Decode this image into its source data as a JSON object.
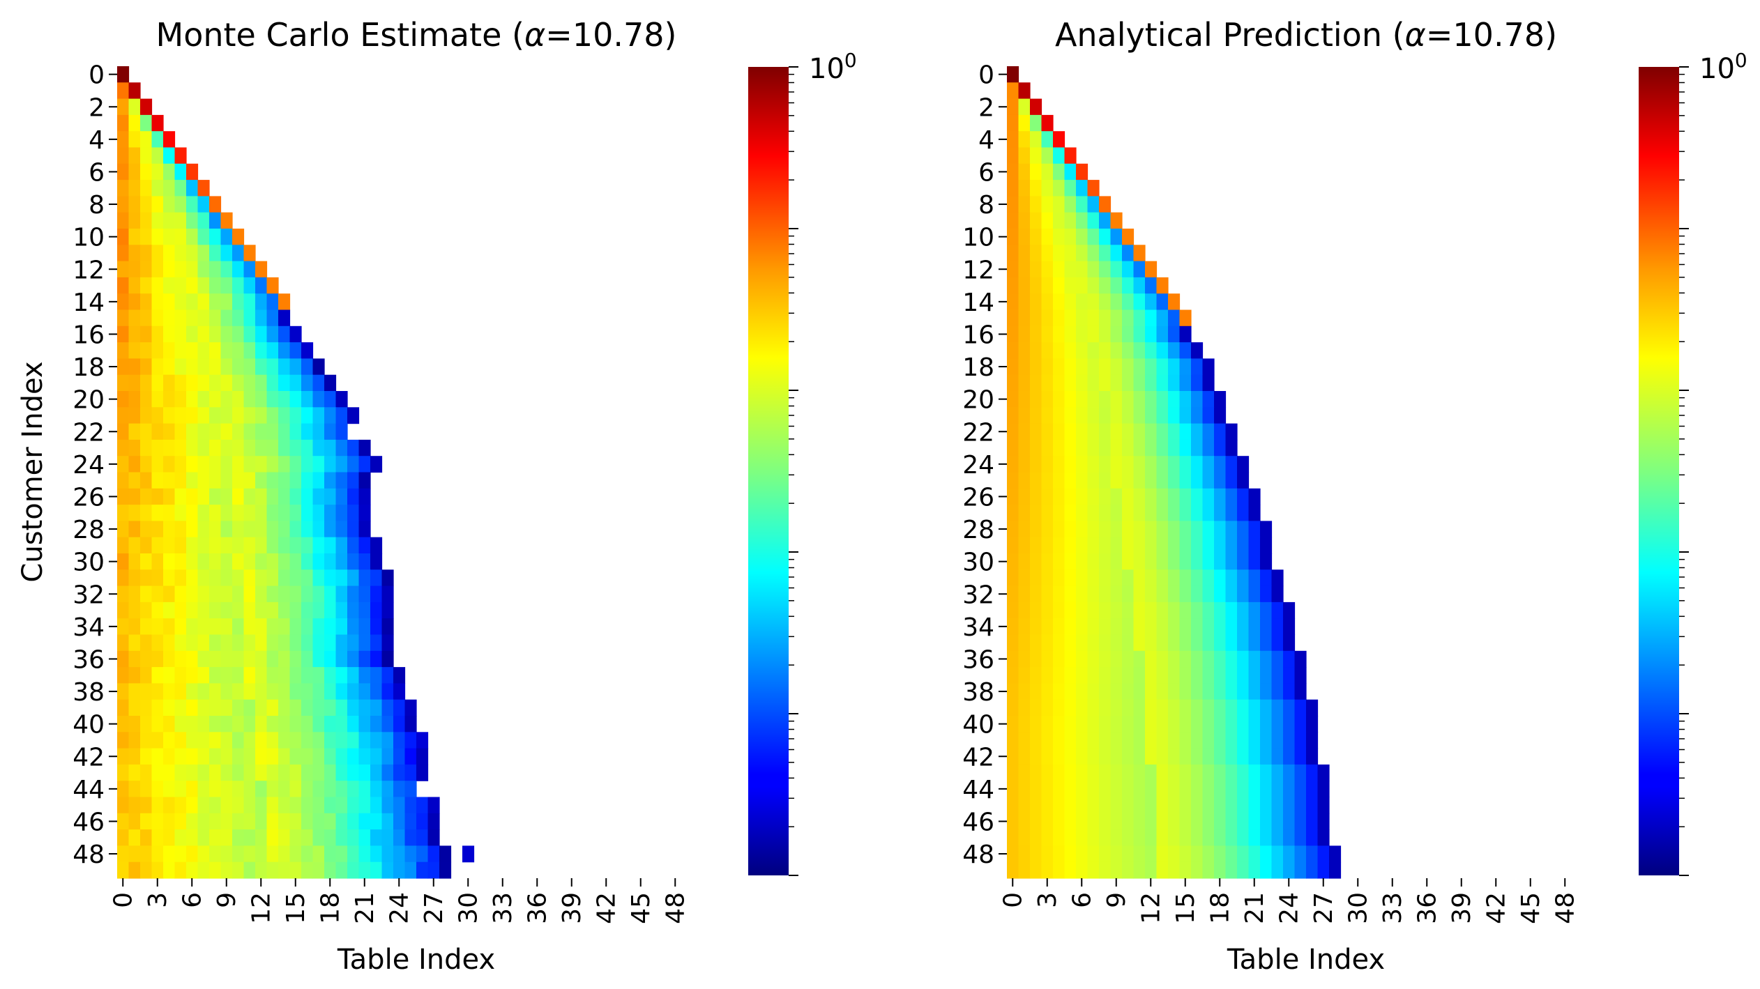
{
  "chart_data": [
    {
      "type": "heatmap",
      "title": "Monte Carlo Estimate (α=10.78)",
      "title_parts": {
        "prefix": "Monte Carlo Estimate (",
        "symbol": "α",
        "suffix": "=10.78)"
      },
      "xlabel": "Table Index",
      "ylabel": "Customer Index",
      "rows": 50,
      "cols": 50,
      "x_ticks": [
        0,
        3,
        6,
        9,
        12,
        15,
        18,
        21,
        24,
        27,
        30,
        33,
        36,
        39,
        42,
        45,
        48
      ],
      "y_ticks": [
        0,
        2,
        4,
        6,
        8,
        10,
        12,
        14,
        16,
        18,
        20,
        22,
        24,
        26,
        28,
        30,
        32,
        34,
        36,
        38,
        40,
        42,
        44,
        46,
        48
      ],
      "colorbar": {
        "label_mantissa": "10",
        "label_exponent": "0",
        "colormap": "jet",
        "scale": "log"
      },
      "max_table_per_row": [
        0,
        1,
        2,
        3,
        4,
        5,
        6,
        7,
        8,
        9,
        10,
        11,
        12,
        13,
        14,
        14,
        15,
        16,
        17,
        18,
        19,
        20,
        20,
        21,
        22,
        21,
        21,
        21,
        21,
        22,
        22,
        23,
        23,
        23,
        23,
        23,
        23,
        24,
        24,
        25,
        25,
        26,
        26,
        26,
        27,
        27,
        27,
        27,
        28,
        28
      ],
      "cell_values_note": "Cell values are estimated probabilities shown on a log color scale."
    },
    {
      "type": "heatmap",
      "title": "Analytical Prediction (α=10.78)",
      "title_parts": {
        "prefix": "Analytical Prediction (",
        "symbol": "α",
        "suffix": "=10.78)"
      },
      "xlabel": "Table Index",
      "ylabel": "",
      "rows": 50,
      "cols": 50,
      "x_ticks": [
        0,
        3,
        6,
        9,
        12,
        15,
        18,
        21,
        24,
        27,
        30,
        33,
        36,
        39,
        42,
        45,
        48
      ],
      "y_ticks": [
        0,
        2,
        4,
        6,
        8,
        10,
        12,
        14,
        16,
        18,
        20,
        22,
        24,
        26,
        28,
        30,
        32,
        34,
        36,
        38,
        40,
        42,
        44,
        46,
        48
      ],
      "colorbar": {
        "label_mantissa": "10",
        "label_exponent": "0",
        "colormap": "jet",
        "scale": "log"
      },
      "max_table_per_row": [
        0,
        1,
        2,
        3,
        4,
        5,
        6,
        7,
        8,
        9,
        10,
        11,
        12,
        13,
        14,
        15,
        15,
        16,
        17,
        17,
        18,
        18,
        19,
        19,
        20,
        20,
        21,
        21,
        22,
        22,
        22,
        23,
        23,
        24,
        24,
        24,
        25,
        25,
        25,
        26,
        26,
        26,
        26,
        27,
        27,
        27,
        27,
        27,
        28,
        28
      ]
    }
  ]
}
